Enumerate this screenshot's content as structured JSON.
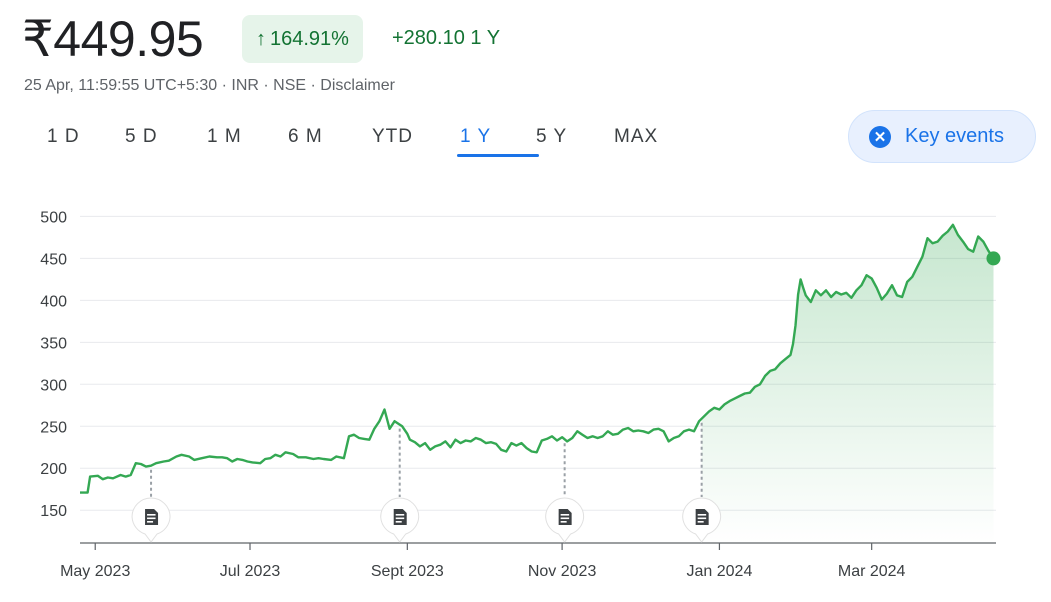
{
  "header": {
    "price": "₹449.95",
    "percent_change": "164.91%",
    "absolute_change": "+280.10 1 Y",
    "meta": "25 Apr, 11:59:55 UTC+5:30 · INR · NSE · Disclaimer"
  },
  "tabs": [
    {
      "label": "1 D",
      "active": false
    },
    {
      "label": "5 D",
      "active": false
    },
    {
      "label": "1 M",
      "active": false
    },
    {
      "label": "6 M",
      "active": false
    },
    {
      "label": "YTD",
      "active": false
    },
    {
      "label": "1 Y",
      "active": true
    },
    {
      "label": "5 Y",
      "active": false
    },
    {
      "label": "MAX",
      "active": false
    }
  ],
  "key_events": {
    "label": "Key events",
    "icon": "close-icon"
  },
  "colors": {
    "line": "#34a853",
    "accent": "#1a73e8",
    "positive": "#137333"
  },
  "chart_data": {
    "type": "line",
    "yticks": [
      150,
      200,
      250,
      300,
      350,
      400,
      450,
      500
    ],
    "ylim": [
      105,
      510
    ],
    "xlim": [
      0,
      361
    ],
    "xticks": [
      {
        "label": "May 2023",
        "x": 6
      },
      {
        "label": "Jul 2023",
        "x": 67
      },
      {
        "label": "Sept 2023",
        "x": 129
      },
      {
        "label": "Nov 2023",
        "x": 190
      },
      {
        "label": "Jan 2024",
        "x": 252
      },
      {
        "label": "Mar 2024",
        "x": 312
      }
    ],
    "events": [
      28,
      126,
      191,
      245
    ],
    "series": [
      {
        "x": [
          0,
          3,
          4,
          7,
          9,
          11,
          13,
          16,
          18,
          20,
          22,
          24,
          26,
          28,
          30,
          33,
          35,
          38,
          40,
          43,
          45,
          48,
          51,
          54,
          56,
          58,
          60,
          62,
          64,
          66,
          68,
          71,
          73,
          75,
          77,
          79,
          81,
          84,
          86,
          89,
          92,
          94,
          96,
          99,
          101,
          104,
          106,
          108,
          110,
          112,
          114,
          116,
          118,
          120,
          122,
          124,
          126,
          127,
          129,
          130,
          132,
          134,
          136,
          138,
          140,
          142,
          144,
          146,
          148,
          150,
          152,
          154,
          156,
          158,
          160,
          162,
          164,
          166,
          168,
          170,
          172,
          174,
          176,
          178,
          180,
          182,
          184,
          186,
          188,
          190,
          192,
          194,
          196,
          198,
          200,
          202,
          204,
          206,
          208,
          210,
          212,
          214,
          216,
          218,
          220,
          222,
          224,
          226,
          228,
          230,
          232,
          234,
          236,
          238,
          240,
          242,
          244,
          246,
          248,
          250,
          252,
          254,
          256,
          258,
          260,
          262,
          264,
          266,
          268,
          270,
          272,
          274,
          276,
          278,
          280,
          281,
          282,
          283,
          284,
          285,
          286,
          288,
          290,
          292,
          294,
          296,
          298,
          300,
          302,
          304,
          306,
          308,
          310,
          312,
          314,
          316,
          318,
          320,
          322,
          324,
          326,
          328,
          330,
          332,
          334,
          336,
          338,
          340,
          342,
          344,
          346,
          348,
          350,
          352,
          354,
          356,
          358,
          360
        ],
        "y": [
          171,
          171,
          190,
          191,
          187,
          189,
          188,
          192,
          190,
          192,
          206,
          205,
          202,
          203,
          206,
          208,
          209,
          214,
          216,
          214,
          210,
          212,
          214,
          213,
          213,
          212,
          208,
          211,
          210,
          208,
          207,
          206,
          211,
          212,
          216,
          214,
          219,
          217,
          213,
          213,
          211,
          212,
          211,
          210,
          214,
          212,
          238,
          240,
          236,
          235,
          234,
          247,
          256,
          270,
          247,
          256,
          252,
          250,
          241,
          234,
          231,
          226,
          230,
          222,
          226,
          228,
          232,
          225,
          234,
          230,
          233,
          232,
          236,
          234,
          230,
          231,
          229,
          222,
          220,
          230,
          227,
          230,
          224,
          220,
          219,
          233,
          235,
          238,
          233,
          237,
          232,
          236,
          244,
          240,
          236,
          238,
          236,
          238,
          244,
          240,
          241,
          246,
          248,
          244,
          245,
          244,
          242,
          246,
          247,
          244,
          232,
          236,
          238,
          244,
          246,
          244,
          256,
          262,
          268,
          272,
          270,
          276,
          280,
          283,
          286,
          289,
          290,
          297,
          300,
          310,
          316,
          318,
          325,
          330,
          335,
          348,
          370,
          407,
          425,
          415,
          406,
          398,
          412,
          406,
          412,
          404,
          410,
          407,
          409,
          403,
          412,
          418,
          430,
          426,
          415,
          401,
          408,
          418,
          406,
          404,
          422,
          428,
          440,
          452,
          474,
          468,
          470,
          477,
          482,
          490,
          478,
          470,
          461,
          458,
          476,
          470,
          459,
          449.95
        ]
      }
    ]
  }
}
